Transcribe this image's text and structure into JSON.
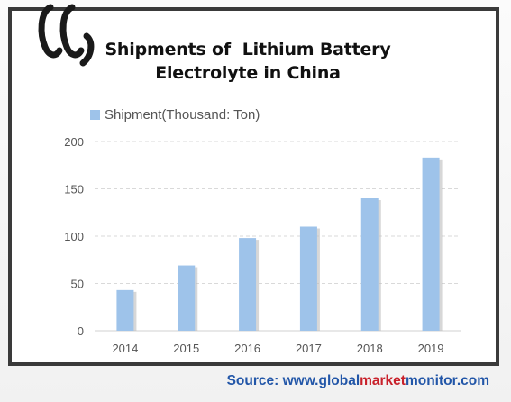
{
  "chart_data": {
    "type": "bar",
    "title_lines": [
      "Shipments of  Lithium Battery",
      "Electrolyte in China"
    ],
    "legend": "Shipment(Thousand: Ton)",
    "categories": [
      "2014",
      "2015",
      "2016",
      "2017",
      "2018",
      "2019"
    ],
    "series": [
      {
        "name": "Shipment(Thousand: Ton)",
        "values": [
          43,
          69,
          98,
          110,
          140,
          183
        ]
      }
    ],
    "yticks": [
      "0",
      "50",
      "100",
      "150",
      "200"
    ],
    "ylim": [
      0,
      200
    ],
    "grid": true,
    "legend_position": "top-left",
    "bar_color": "#9ec3ea",
    "bar_shadow_color": "#bcbcbc"
  },
  "source": {
    "prefix": "Source: www.",
    "global": "global",
    "market": "market",
    "monitor": "monitor",
    "suffix": ".com",
    "blue": "#2256a8",
    "red": "#c8202a"
  },
  "logo": {
    "icon": "gmm-logo-icon"
  }
}
